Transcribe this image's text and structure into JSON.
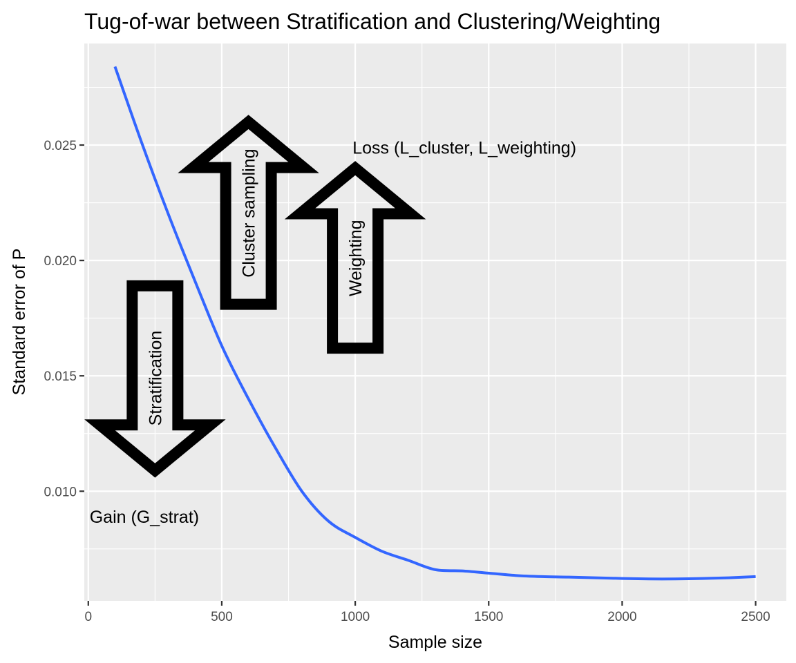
{
  "chart_data": {
    "type": "line",
    "title": "Tug-of-war between Stratification and Clustering/Weighting",
    "xlabel": "Sample size",
    "ylabel": "Standard error of P",
    "xlim": [
      -15,
      2615
    ],
    "ylim": [
      0.00525,
      0.0294
    ],
    "x_ticks": [
      0,
      500,
      1000,
      1500,
      2000,
      2500
    ],
    "x_tick_labels": [
      "0",
      "500",
      "1000",
      "1500",
      "2000",
      "2500"
    ],
    "y_ticks": [
      0.01,
      0.015,
      0.02,
      0.025
    ],
    "y_tick_labels": [
      "0.010",
      "0.015",
      "0.020",
      "0.025"
    ],
    "grid": true,
    "series": [
      {
        "color": "#3366FF",
        "x": [
          100,
          200,
          300,
          400,
          500,
          600,
          700,
          800,
          900,
          1000,
          1100,
          1200,
          1300,
          1400,
          1500,
          1600,
          1700,
          1800,
          1900,
          2000,
          2100,
          2200,
          2300,
          2400,
          2500
        ],
        "y": [
          0.0284,
          0.0251,
          0.022,
          0.0191,
          0.0163,
          0.014,
          0.0119,
          0.01,
          0.0087,
          0.008,
          0.0074,
          0.007,
          0.0066,
          0.00655,
          0.00645,
          0.00635,
          0.0063,
          0.00628,
          0.00625,
          0.00622,
          0.0062,
          0.0062,
          0.00622,
          0.00625,
          0.0063
        ]
      }
    ],
    "annotations": [
      {
        "id": "stratification",
        "text": "Stratification",
        "direction": "down",
        "x": 250,
        "y_base": 0.0189,
        "y_tip": 0.0109
      },
      {
        "id": "cluster-sampling",
        "text": "Cluster sampling",
        "direction": "up",
        "x": 600,
        "y_base": 0.0181,
        "y_tip": 0.026
      },
      {
        "id": "weighting",
        "text": "Weighting",
        "direction": "up",
        "x": 1000,
        "y_base": 0.0162,
        "y_tip": 0.024
      }
    ],
    "labels": [
      {
        "id": "gain",
        "text": "Gain (G_strat)",
        "x": 5,
        "y": 0.0089,
        "anchor": "start"
      },
      {
        "id": "loss",
        "text": "Loss (L_cluster, L_weighting)",
        "x": 990,
        "y": 0.0249,
        "anchor": "start"
      }
    ]
  },
  "colors": {
    "panel": "#EBEBEB",
    "grid": "#FFFFFF",
    "line": "#3366FF",
    "arrow": "#000000"
  }
}
